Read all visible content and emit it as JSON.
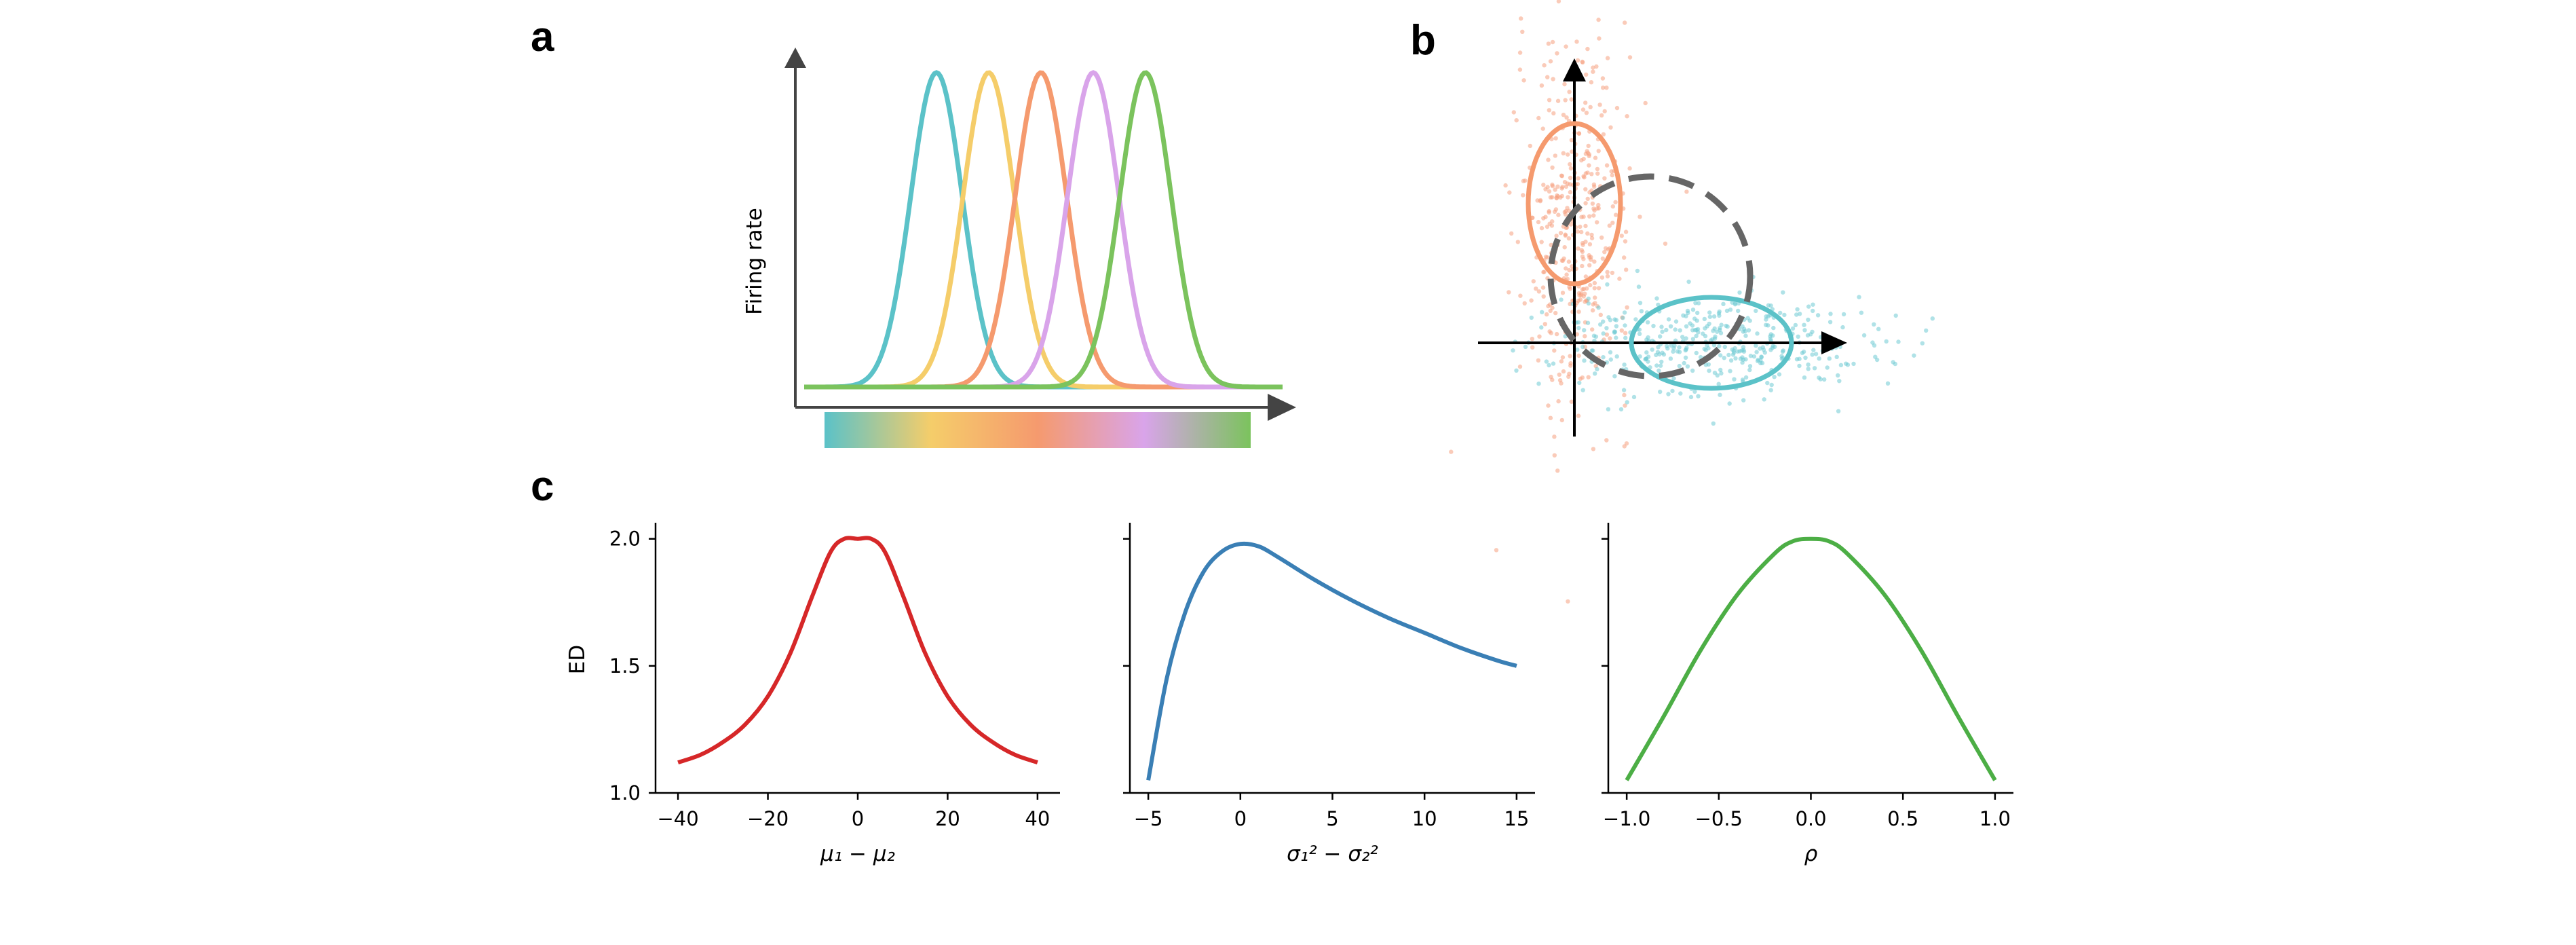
{
  "panel_labels": {
    "a": "a",
    "b": "b",
    "c": "c"
  },
  "colors": {
    "tuning": [
      "#5bc2c8",
      "#f5cd6a",
      "#f59a6e",
      "#d9a4ea",
      "#7bc35d"
    ],
    "cluster_orange": "#f5a07f",
    "cluster_cyan": "#6fcbd3",
    "dashed": "#666666",
    "ed_mu": "#d62728",
    "ed_sigma": "#3a7fb5",
    "ed_rho": "#4cae45"
  },
  "panel_a": {
    "ylabel": "Firing rate",
    "chart_data": {
      "type": "line",
      "series_centers": [
        -2,
        -1,
        0,
        1,
        2
      ],
      "shape": "gaussian tuning curves, equal width and peak",
      "colorbar": true
    }
  },
  "panel_b": {
    "chart_data": {
      "type": "scatter",
      "clusters": [
        {
          "color": "orange",
          "mean": [
            0,
            1.0
          ],
          "std": [
            0.25,
            0.8
          ]
        },
        {
          "color": "cyan",
          "mean": [
            1.2,
            0.0
          ],
          "std": [
            0.7,
            0.22
          ]
        }
      ],
      "dashed_circle": {
        "center": [
          0.6,
          0.5
        ],
        "radius": 1.1
      }
    }
  },
  "panel_c": {
    "chart_data": [
      {
        "type": "line",
        "xlabel": "μ₁ − μ₂",
        "ylabel": "ED",
        "xlim": [
          -45,
          45
        ],
        "ylim": [
          1.0,
          2.05
        ],
        "xticks": [
          "−40",
          "−20",
          "0",
          "20",
          "40"
        ],
        "yticks": [
          "1.0",
          "1.5",
          "2.0"
        ],
        "x": [
          -40,
          -35,
          -30,
          -25,
          -20,
          -15,
          -10,
          -6,
          -3,
          0,
          3,
          6,
          10,
          15,
          20,
          25,
          30,
          35,
          40
        ],
        "y": [
          1.12,
          1.15,
          1.2,
          1.27,
          1.38,
          1.55,
          1.78,
          1.95,
          2.0,
          2.0,
          2.0,
          1.95,
          1.78,
          1.55,
          1.38,
          1.27,
          1.2,
          1.15,
          1.12
        ]
      },
      {
        "type": "line",
        "xlabel": "σ₁² − σ₂²",
        "xlim": [
          -6,
          16
        ],
        "ylim": [
          1.0,
          2.05
        ],
        "xticks": [
          "−5",
          "0",
          "5",
          "10",
          "15"
        ],
        "x": [
          -5,
          -4,
          -3,
          -2,
          -1,
          0,
          1,
          2,
          4,
          6,
          8,
          10,
          12,
          14,
          15
        ],
        "y": [
          1.05,
          1.45,
          1.71,
          1.87,
          1.95,
          1.98,
          1.97,
          1.93,
          1.84,
          1.76,
          1.69,
          1.63,
          1.57,
          1.52,
          1.5
        ]
      },
      {
        "type": "line",
        "xlabel": "ρ",
        "xlim": [
          -1.1,
          1.1
        ],
        "ylim": [
          1.0,
          2.05
        ],
        "xticks": [
          "−1.0",
          "−0.5",
          "0.0",
          "0.5",
          "1.0"
        ],
        "x": [
          -1.0,
          -0.8,
          -0.6,
          -0.4,
          -0.2,
          -0.1,
          0.0,
          0.1,
          0.2,
          0.4,
          0.6,
          0.8,
          1.0
        ],
        "y": [
          1.05,
          1.3,
          1.56,
          1.78,
          1.94,
          1.99,
          2.0,
          1.99,
          1.94,
          1.78,
          1.56,
          1.3,
          1.05
        ]
      }
    ]
  }
}
